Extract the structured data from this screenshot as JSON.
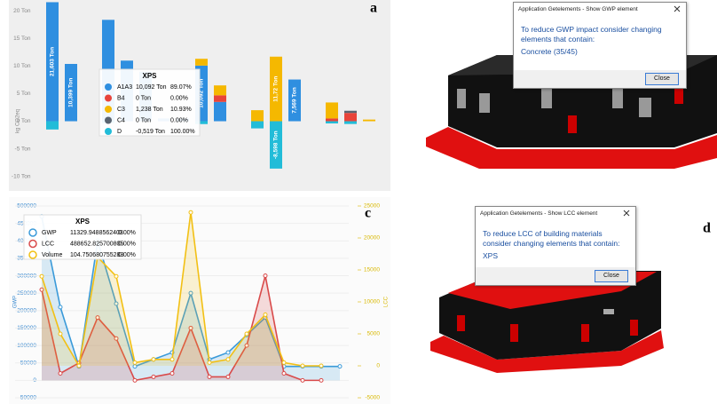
{
  "chart_data": [
    {
      "type": "bar",
      "stacked": true,
      "ylabel": "kg CO2eq",
      "grid": false,
      "categories": [
        null,
        null,
        null,
        null,
        null,
        null,
        null,
        null,
        null,
        null,
        null,
        null,
        null,
        null,
        null,
        null,
        null,
        null
      ],
      "ylim": [
        -12,
        22
      ],
      "yticks": [
        {
          "value": -10,
          "label": "-10 Ton"
        },
        {
          "value": -5,
          "label": "-5 Ton"
        },
        {
          "value": 0,
          "label": "0 Ton"
        },
        {
          "value": 5,
          "label": "5 Ton"
        },
        {
          "value": 10,
          "label": "10 Ton"
        },
        {
          "value": 15,
          "label": "15 Ton"
        },
        {
          "value": 20,
          "label": "20 Ton"
        }
      ],
      "series": [
        {
          "name": "A1A3",
          "color": "#2f8fe0",
          "values": [
            21.603,
            10.399,
            0,
            18.4,
            11,
            9,
            0.5,
            0.5,
            10.092,
            3.5,
            0,
            0,
            0,
            7.569,
            0,
            0,
            0,
            0
          ],
          "value_labels": [
            "21,603 Ton",
            "10,399 Ton",
            null,
            null,
            null,
            null,
            null,
            null,
            "10,092 Ton",
            null,
            null,
            null,
            null,
            "7,569 Ton",
            null,
            null,
            null,
            null
          ]
        },
        {
          "name": "B4",
          "color": "#e8443a",
          "values": [
            0,
            0,
            0,
            0,
            0,
            0,
            0,
            0,
            0,
            1.2,
            0,
            0,
            0,
            0,
            0,
            0.5,
            1.5,
            0
          ]
        },
        {
          "name": "C3",
          "color": "#f5b800",
          "values": [
            0,
            0,
            0,
            0,
            0,
            0,
            0,
            0,
            1.238,
            1.8,
            0,
            2,
            11.72,
            0,
            0,
            2.9,
            0,
            0.3
          ],
          "value_labels": [
            null,
            null,
            null,
            null,
            null,
            null,
            null,
            null,
            null,
            null,
            null,
            null,
            "11,72 Ton",
            null,
            null,
            null,
            null,
            null
          ]
        },
        {
          "name": "C4",
          "color": "#5a6470",
          "values": [
            0,
            0,
            0,
            0,
            0,
            0,
            0,
            0,
            0,
            0,
            0,
            0,
            0,
            0,
            0,
            0,
            0.4,
            0
          ]
        },
        {
          "name": "D",
          "color": "#22bcd8",
          "values": [
            -1.5,
            0,
            0,
            -0.3,
            0,
            0,
            0,
            0,
            -0.519,
            0,
            0,
            -1.3,
            -8.598,
            0,
            0,
            -0.4,
            -0.5,
            0
          ],
          "value_labels": [
            null,
            null,
            null,
            null,
            null,
            null,
            null,
            null,
            null,
            null,
            null,
            null,
            "-8,598 Ton",
            null,
            null,
            null,
            null,
            null
          ]
        }
      ],
      "tooltip": {
        "title": "XPS",
        "rows": [
          [
            "10,092 Ton",
            "89.07%"
          ],
          [
            "0 Ton",
            "0.00%"
          ],
          [
            "1,238 Ton",
            "10.93%"
          ],
          [
            "0 Ton",
            "0.00%"
          ],
          [
            "-0,519 Ton",
            "100.00%"
          ]
        ]
      }
    },
    {
      "type": "line",
      "ylabel": "GWP",
      "y2label": "LCC",
      "grid": true,
      "categories": [
        null,
        null,
        null,
        null,
        null,
        null,
        null,
        null,
        null,
        null,
        null,
        null,
        null,
        null,
        null,
        null,
        null
      ],
      "ylim": [
        -50000,
        500000
      ],
      "yticks": [
        -50000,
        0,
        50000,
        100000,
        150000,
        200000,
        250000,
        300000,
        350000,
        400000,
        450000,
        500000
      ],
      "y2lim": [
        -5000,
        25000
      ],
      "y2ticks": [
        -5000,
        0,
        5000,
        10000,
        15000,
        20000,
        25000
      ],
      "series": [
        {
          "name": "GWP",
          "color": "#3a9ad9",
          "values": [
            470000,
            210000,
            40000,
            400000,
            220000,
            40000,
            60000,
            80000,
            250000,
            60000,
            80000,
            130000,
            180000,
            40000,
            40000,
            40000,
            40000
          ]
        },
        {
          "name": "LCC",
          "color": "#d94a4a",
          "values": [
            260000,
            20000,
            50000,
            180000,
            120000,
            0,
            10000,
            20000,
            150000,
            10000,
            10000,
            100000,
            300000,
            20000,
            0,
            0,
            null
          ]
        },
        {
          "name": "Volume",
          "color": "#f2c014",
          "axis": "y2",
          "values": [
            14000,
            5000,
            0,
            17000,
            14000,
            500,
            1000,
            1000,
            24000,
            500,
            1000,
            5000,
            8000,
            500,
            0,
            0,
            null
          ]
        }
      ],
      "tooltip": {
        "title": "XPS",
        "rows": [
          [
            "11329.9488562403",
            "0.00%"
          ],
          [
            "488652.825700805",
            "0.00%"
          ],
          [
            "104.750680755283",
            "0.00%"
          ]
        ]
      }
    }
  ],
  "panel_labels": [
    "a",
    "c",
    "d"
  ],
  "dialogs": [
    {
      "title": "Application Getelements - Show GWP element",
      "message": "To reduce GWP impact consider changing elements that contain:",
      "item": "Concrete (35/45)",
      "button": "Close"
    },
    {
      "title": "Application Getelements - Show LCC element",
      "message": "To reduce LCC of building materials consider changing elements that contain:",
      "item": "XPS",
      "button": "Close"
    }
  ]
}
